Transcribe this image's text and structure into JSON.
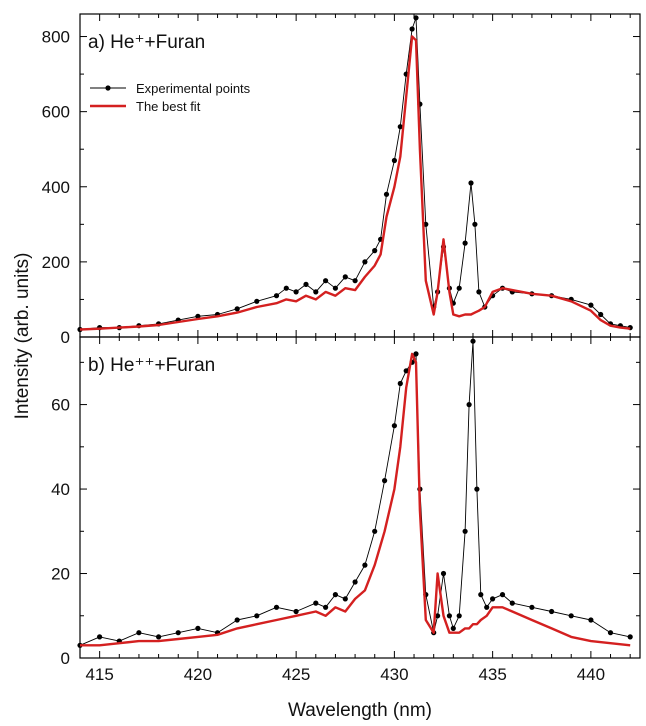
{
  "chart_data": [
    {
      "type": "line",
      "panel_label": "a) He⁺+Furan",
      "xlabel": "Wavelength (nm)",
      "ylabel": "Intensity (arb. units)",
      "xlim": [
        414,
        442.5
      ],
      "ylim": [
        0,
        860
      ],
      "x_ticks": [
        415,
        420,
        425,
        430,
        435,
        440
      ],
      "y_ticks": [
        0,
        200,
        400,
        600,
        800
      ],
      "legend": {
        "placement": "top-left",
        "entries": [
          "Experimental points",
          "The best fit"
        ]
      },
      "series": [
        {
          "name": "Experimental points",
          "color": "#000000",
          "x": [
            414,
            415,
            416,
            417,
            418,
            419,
            420,
            421,
            422,
            423,
            424,
            424.5,
            425,
            425.5,
            426,
            426.5,
            427,
            427.5,
            428,
            428.5,
            429,
            429.3,
            429.6,
            430,
            430.3,
            430.6,
            430.9,
            431.1,
            431.3,
            431.6,
            432,
            432.2,
            432.5,
            432.8,
            433,
            433.3,
            433.6,
            433.9,
            434.1,
            434.3,
            434.6,
            435,
            435.5,
            436,
            437,
            438,
            439,
            440,
            440.5,
            441,
            441.5,
            442
          ],
          "y": [
            20,
            25,
            25,
            30,
            35,
            45,
            55,
            60,
            75,
            95,
            110,
            130,
            120,
            140,
            120,
            150,
            130,
            160,
            150,
            200,
            230,
            260,
            380,
            470,
            560,
            700,
            820,
            850,
            620,
            300,
            80,
            120,
            240,
            130,
            90,
            130,
            250,
            410,
            300,
            120,
            80,
            110,
            130,
            120,
            115,
            110,
            100,
            85,
            60,
            35,
            30,
            25
          ]
        },
        {
          "name": "The best fit",
          "color": "#d42020",
          "x": [
            414,
            415,
            416,
            417,
            418,
            419,
            420,
            421,
            422,
            423,
            424,
            424.5,
            425,
            425.5,
            426,
            426.5,
            427,
            427.5,
            428,
            428.5,
            429,
            429.3,
            429.6,
            430,
            430.3,
            430.6,
            430.9,
            431.1,
            431.3,
            431.6,
            432,
            432.2,
            432.5,
            432.8,
            433,
            433.3,
            433.6,
            433.9,
            434.1,
            434.3,
            434.6,
            435,
            435.5,
            436,
            437,
            438,
            439,
            440,
            440.5,
            441,
            441.5,
            442
          ],
          "y": [
            20,
            22,
            25,
            28,
            32,
            40,
            48,
            55,
            65,
            80,
            90,
            100,
            95,
            110,
            100,
            120,
            110,
            130,
            125,
            160,
            190,
            220,
            320,
            400,
            480,
            640,
            800,
            790,
            500,
            150,
            60,
            120,
            260,
            120,
            60,
            55,
            60,
            60,
            65,
            70,
            80,
            120,
            130,
            125,
            115,
            110,
            95,
            70,
            45,
            30,
            25,
            22
          ]
        }
      ]
    },
    {
      "type": "line",
      "panel_label": "b) He⁺⁺+Furan",
      "xlabel": "Wavelength (nm)",
      "ylabel": "Intensity (arb. units)",
      "xlim": [
        414,
        442.5
      ],
      "ylim": [
        0,
        76
      ],
      "x_ticks": [
        415,
        420,
        425,
        430,
        435,
        440
      ],
      "y_ticks": [
        0,
        20,
        40,
        60
      ],
      "series": [
        {
          "name": "Experimental points",
          "color": "#000000",
          "x": [
            414,
            415,
            416,
            417,
            418,
            419,
            420,
            421,
            422,
            423,
            424,
            425,
            426,
            426.5,
            427,
            427.5,
            428,
            428.5,
            429,
            429.5,
            430,
            430.3,
            430.6,
            430.9,
            431.1,
            431.3,
            431.6,
            432,
            432.2,
            432.5,
            432.8,
            433,
            433.3,
            433.6,
            433.8,
            434,
            434.2,
            434.4,
            434.7,
            435,
            435.5,
            436,
            437,
            438,
            439,
            440,
            441,
            442
          ],
          "y": [
            3,
            5,
            4,
            6,
            5,
            6,
            7,
            6,
            9,
            10,
            12,
            11,
            13,
            12,
            15,
            14,
            18,
            22,
            30,
            42,
            55,
            65,
            68,
            70,
            72,
            40,
            15,
            6,
            10,
            20,
            10,
            7,
            10,
            30,
            60,
            75,
            40,
            15,
            12,
            14,
            15,
            13,
            12,
            11,
            10,
            9,
            6,
            5
          ]
        },
        {
          "name": "The best fit",
          "color": "#d42020",
          "x": [
            414,
            415,
            416,
            417,
            418,
            419,
            420,
            421,
            422,
            423,
            424,
            425,
            426,
            426.5,
            427,
            427.5,
            428,
            428.5,
            429,
            429.5,
            430,
            430.3,
            430.6,
            430.9,
            431.1,
            431.3,
            431.6,
            432,
            432.2,
            432.5,
            432.8,
            433,
            433.3,
            433.6,
            433.8,
            434,
            434.2,
            434.4,
            434.7,
            435,
            435.5,
            436,
            437,
            438,
            439,
            440,
            441,
            442
          ],
          "y": [
            3,
            3,
            3.5,
            4,
            4,
            4.5,
            5,
            5.5,
            7,
            8,
            9,
            10,
            11,
            10,
            12,
            11,
            14,
            16,
            22,
            30,
            40,
            50,
            64,
            72,
            70,
            35,
            9,
            6,
            20,
            10,
            6,
            6,
            6,
            7,
            7,
            8,
            8,
            9,
            10,
            12,
            12,
            11,
            9,
            7,
            5,
            4,
            3.5,
            3
          ]
        }
      ]
    }
  ]
}
